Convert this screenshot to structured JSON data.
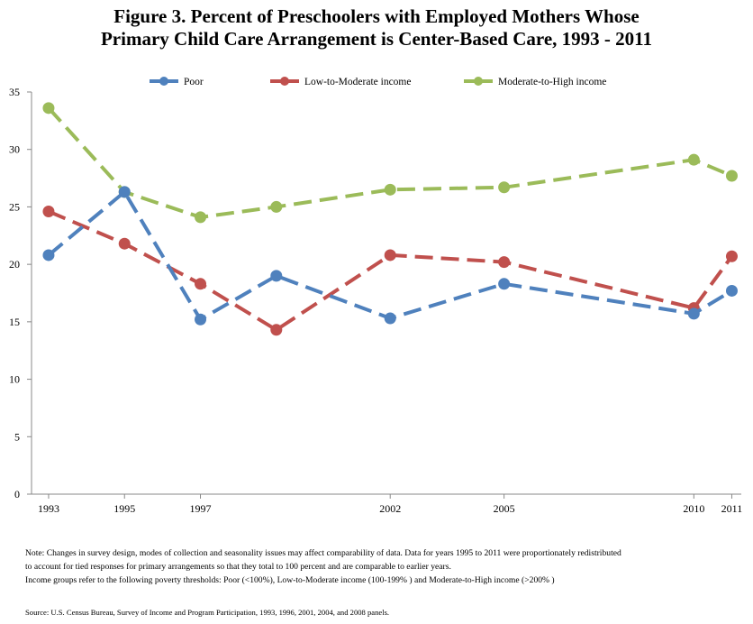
{
  "title_line1": "Figure 3. Percent of Preschoolers with Employed Mothers Whose",
  "title_line2": "Primary Child Care Arrangement is Center-Based Care, 1993 - 2011",
  "notes": {
    "line1": "Note: Changes in survey design, modes of collection and seasonality issues may affect comparability of data. Data for years 1995 to 2011 were proportionately redistributed",
    "line2": "to account for tied responses for primary arrangements so that they total to 100 percent and are comparable to earlier years.",
    "line3": "Income groups refer to the following poverty thresholds: Poor (<100%), Low-to-Moderate income (100-199% ) and Moderate-to-High income (>200% )"
  },
  "source": "Source: U.S. Census Bureau, Survey of Income and Program Participation, 1993, 1996, 2001, 2004, and 2008 panels.",
  "chart_data": {
    "type": "line",
    "title": "Figure 3. Percent of Preschoolers with Employed Mothers Whose Primary Child Care Arrangement is Center-Based Care, 1993 - 2011",
    "xlabel": "",
    "ylabel": "",
    "ylim": [
      0,
      35
    ],
    "yticks": [
      0,
      5,
      10,
      15,
      20,
      25,
      30,
      35
    ],
    "grid": false,
    "legend_position": "top",
    "line_style": "dashed",
    "x_tick_labels": [
      "1993",
      "1995",
      "1997",
      "2002",
      "2005",
      "2010",
      "2011"
    ],
    "series": [
      {
        "name": "Poor",
        "color": "#4f81bd",
        "points": [
          {
            "x": 1993,
            "y": 20.8
          },
          {
            "x": 1995,
            "y": 26.3
          },
          {
            "x": 1997,
            "y": 15.2
          },
          {
            "x": 1999,
            "y": 19.0
          },
          {
            "x": 2002,
            "y": 15.3
          },
          {
            "x": 2005,
            "y": 18.3
          },
          {
            "x": 2010,
            "y": 15.7
          },
          {
            "x": 2011,
            "y": 17.7
          }
        ]
      },
      {
        "name": "Low-to-Moderate income",
        "color": "#c0504d",
        "points": [
          {
            "x": 1993,
            "y": 24.6
          },
          {
            "x": 1995,
            "y": 21.8
          },
          {
            "x": 1997,
            "y": 18.3
          },
          {
            "x": 1999,
            "y": 14.3
          },
          {
            "x": 2002,
            "y": 20.8
          },
          {
            "x": 2005,
            "y": 20.2
          },
          {
            "x": 2010,
            "y": 16.2
          },
          {
            "x": 2011,
            "y": 20.7
          }
        ]
      },
      {
        "name": "Moderate-to-High income",
        "color": "#9bbb59",
        "points": [
          {
            "x": 1993,
            "y": 33.6
          },
          {
            "x": 1995,
            "y": 26.3
          },
          {
            "x": 1997,
            "y": 24.1
          },
          {
            "x": 1999,
            "y": 25.0
          },
          {
            "x": 2002,
            "y": 26.5
          },
          {
            "x": 2005,
            "y": 26.7
          },
          {
            "x": 2010,
            "y": 29.1
          },
          {
            "x": 2011,
            "y": 27.7
          }
        ]
      }
    ]
  }
}
